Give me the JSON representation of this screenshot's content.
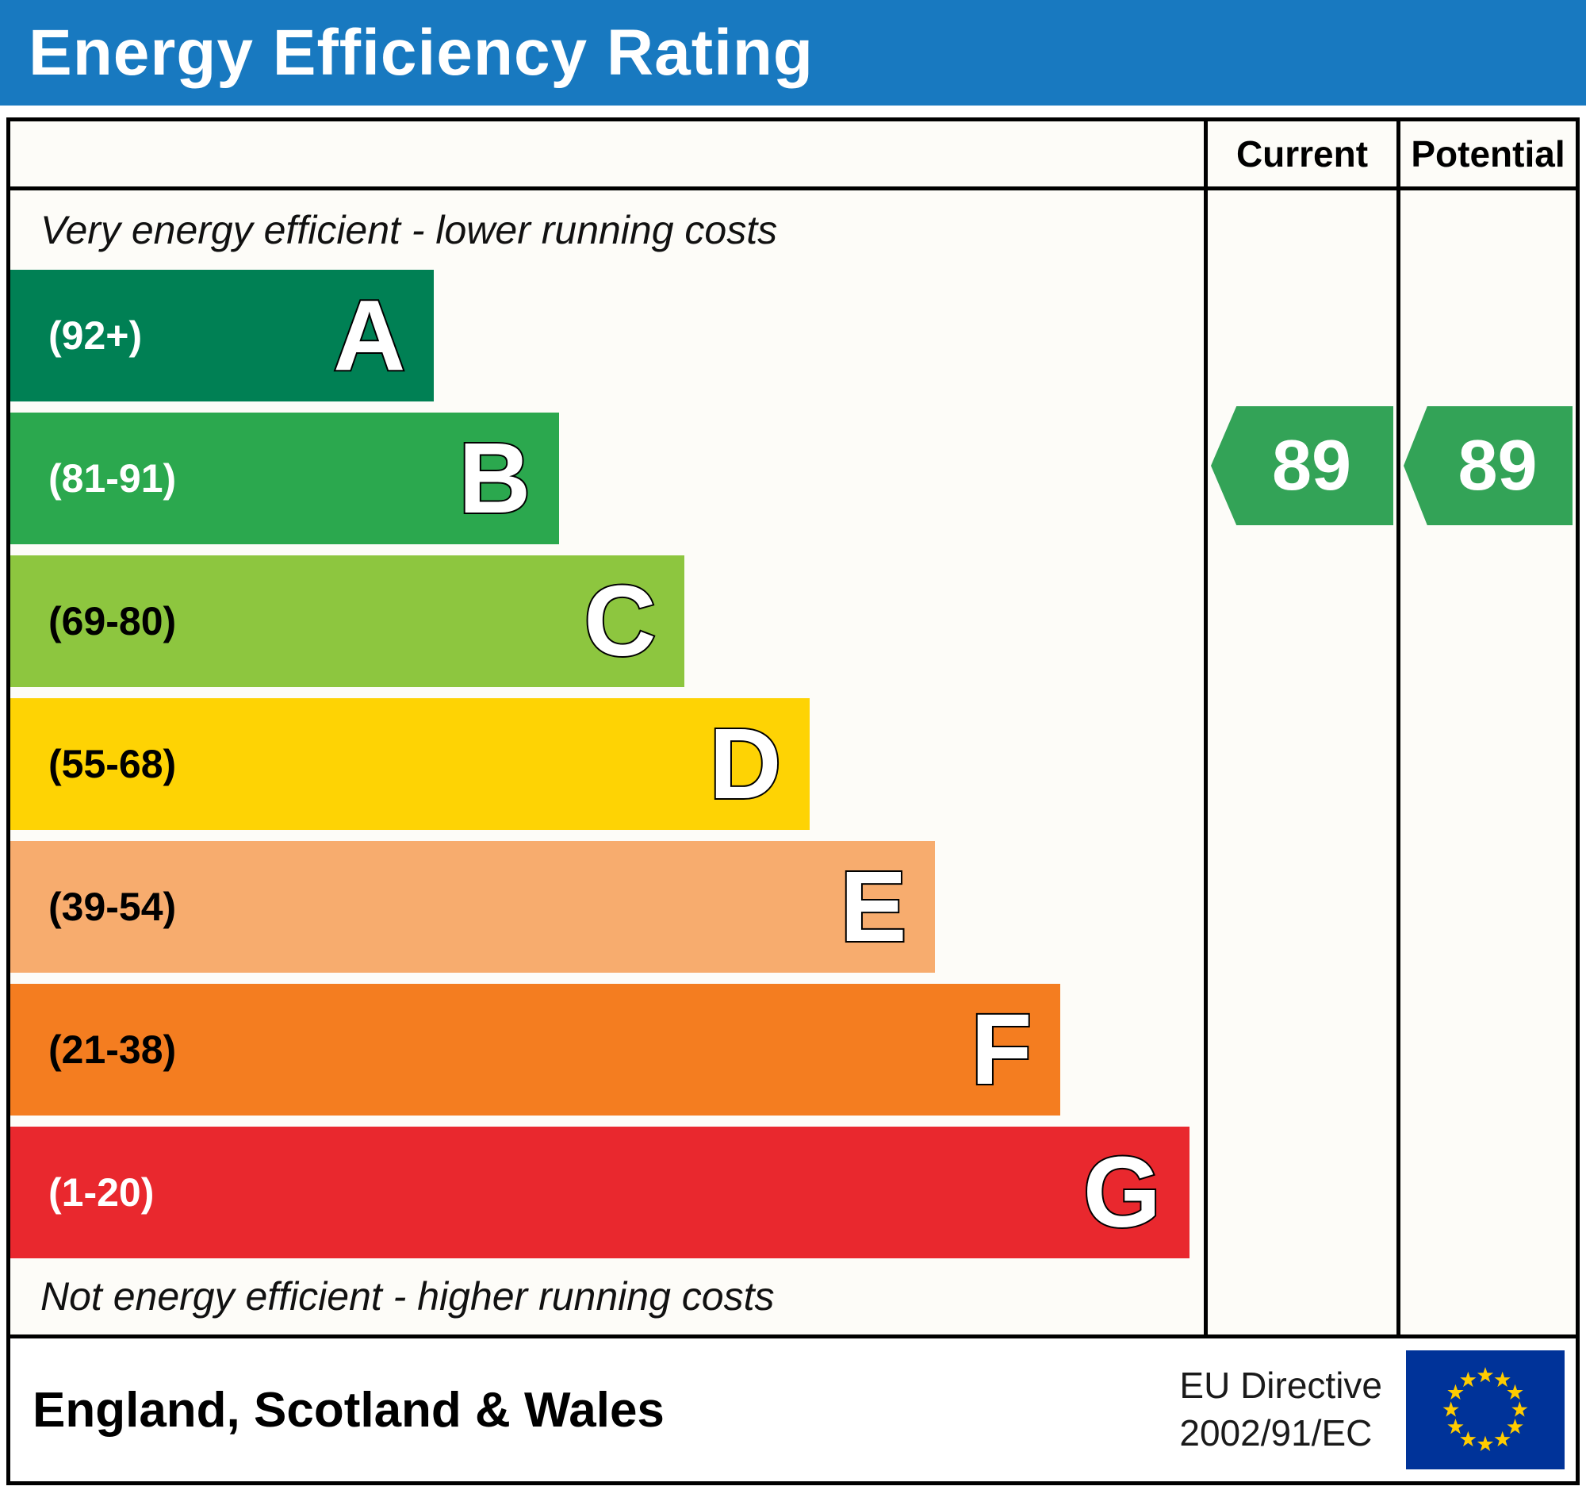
{
  "title_bar": {
    "title": "Energy Efficiency Rating"
  },
  "columns": {
    "current_label": "Current",
    "potential_label": "Potential"
  },
  "notes": {
    "top": "Very energy efficient - lower running costs",
    "bottom": "Not energy efficient - higher running costs"
  },
  "bands": [
    {
      "letter": "A",
      "range": "(92+)",
      "color": "#008054",
      "label_color": "#ffffff",
      "width_pct": 35.5
    },
    {
      "letter": "B",
      "range": "(81-91)",
      "color": "#2ba84e",
      "label_color": "#ffffff",
      "width_pct": 46
    },
    {
      "letter": "C",
      "range": "(69-80)",
      "color": "#8dc63f",
      "label_color": "#000000",
      "width_pct": 56.5
    },
    {
      "letter": "D",
      "range": "(55-68)",
      "color": "#fed304",
      "label_color": "#000000",
      "width_pct": 67
    },
    {
      "letter": "E",
      "range": "(39-54)",
      "color": "#f7ac6e",
      "label_color": "#000000",
      "width_pct": 77.5
    },
    {
      "letter": "F",
      "range": "(21-38)",
      "color": "#f47d20",
      "label_color": "#000000",
      "width_pct": 88
    },
    {
      "letter": "G",
      "range": "(1-20)",
      "color": "#e9282e",
      "label_color": "#ffffff",
      "width_pct": 98.8
    }
  ],
  "ratings": {
    "current": {
      "value": "89",
      "band": "B",
      "color": "#33a357"
    },
    "potential": {
      "value": "89",
      "band": "B",
      "color": "#33a357"
    }
  },
  "footer": {
    "region_label": "England, Scotland & Wales",
    "directive_line1": "EU Directive",
    "directive_line2": "2002/91/EC",
    "eu_flag": {
      "background": "#003399",
      "star_color": "#ffcc00"
    }
  },
  "colors": {
    "header_bg": "#1879c0",
    "header_text": "#ffffff",
    "border": "#000000"
  },
  "chart_data": {
    "type": "bar",
    "orientation": "horizontal",
    "title": "Energy Efficiency Rating",
    "scale": [
      1,
      100
    ],
    "categories": [
      "A",
      "B",
      "C",
      "D",
      "E",
      "F",
      "G"
    ],
    "band_ranges": [
      "92+",
      "81-91",
      "69-80",
      "55-68",
      "39-54",
      "21-38",
      "1-20"
    ],
    "band_colors": [
      "#008054",
      "#2ba84e",
      "#8dc63f",
      "#fed304",
      "#f7ac6e",
      "#f47d20",
      "#e9282e"
    ],
    "bar_width_pct": [
      35.5,
      46,
      56.5,
      67,
      77.5,
      88,
      98.8
    ],
    "markers": [
      {
        "name": "Current",
        "value": 89,
        "band": "B"
      },
      {
        "name": "Potential",
        "value": 89,
        "band": "B"
      }
    ],
    "top_annotation": "Very energy efficient - lower running costs",
    "bottom_annotation": "Not energy efficient - higher running costs",
    "region": "England, Scotland & Wales",
    "directive": "EU Directive 2002/91/EC"
  }
}
